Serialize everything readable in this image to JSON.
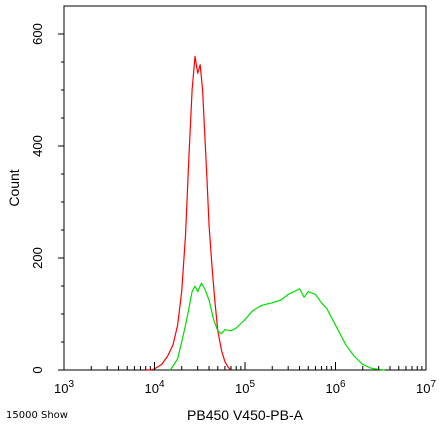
{
  "footer_note": "15000 Show",
  "chart_data": {
    "type": "line",
    "title": "",
    "xlabel": "PB450 V450-PB-A",
    "ylabel": "Count",
    "x_scale": "log",
    "xlim": [
      1000,
      10000000
    ],
    "ylim": [
      0,
      650
    ],
    "grid": false,
    "x_ticks": [
      {
        "value": 1000,
        "base": "10",
        "exp": "3"
      },
      {
        "value": 10000,
        "base": "10",
        "exp": "4"
      },
      {
        "value": 100000,
        "base": "10",
        "exp": "5"
      },
      {
        "value": 1000000,
        "base": "10",
        "exp": "6"
      },
      {
        "value": 10000000,
        "base": "10",
        "exp": "7"
      }
    ],
    "y_ticks": [
      {
        "value": 0,
        "label": "0"
      },
      {
        "value": 200,
        "label": "200"
      },
      {
        "value": 400,
        "label": "400"
      },
      {
        "value": 600,
        "label": "600"
      }
    ],
    "series": [
      {
        "color": "#ff0000",
        "x": [
          8000,
          9000,
          10000,
          12000,
          14000,
          16000,
          18000,
          20000,
          22000,
          24000,
          26000,
          28000,
          30000,
          32000,
          34000,
          36000,
          38000,
          40000,
          43000,
          46000,
          50000,
          55000,
          60000,
          65000,
          70000
        ],
        "y": [
          0,
          0,
          2,
          10,
          25,
          45,
          80,
          140,
          240,
          380,
          500,
          560,
          530,
          545,
          500,
          420,
          340,
          260,
          190,
          130,
          70,
          35,
          15,
          5,
          0
        ]
      },
      {
        "color": "#00dd00",
        "x": [
          15000,
          18000,
          20000,
          22000,
          24000,
          26000,
          28000,
          30000,
          33000,
          36000,
          40000,
          45000,
          50000,
          55000,
          60000,
          70000,
          80000,
          100000,
          120000,
          150000,
          200000,
          250000,
          300000,
          350000,
          400000,
          450000,
          500000,
          600000,
          700000,
          800000,
          1000000,
          1300000,
          1600000,
          2000000,
          2500000,
          3000000,
          3500000
        ],
        "y": [
          0,
          20,
          50,
          80,
          110,
          140,
          150,
          140,
          155,
          145,
          125,
          90,
          70,
          65,
          72,
          70,
          75,
          90,
          105,
          115,
          120,
          125,
          135,
          140,
          145,
          130,
          140,
          135,
          120,
          110,
          80,
          45,
          25,
          10,
          3,
          1,
          0
        ]
      }
    ]
  }
}
